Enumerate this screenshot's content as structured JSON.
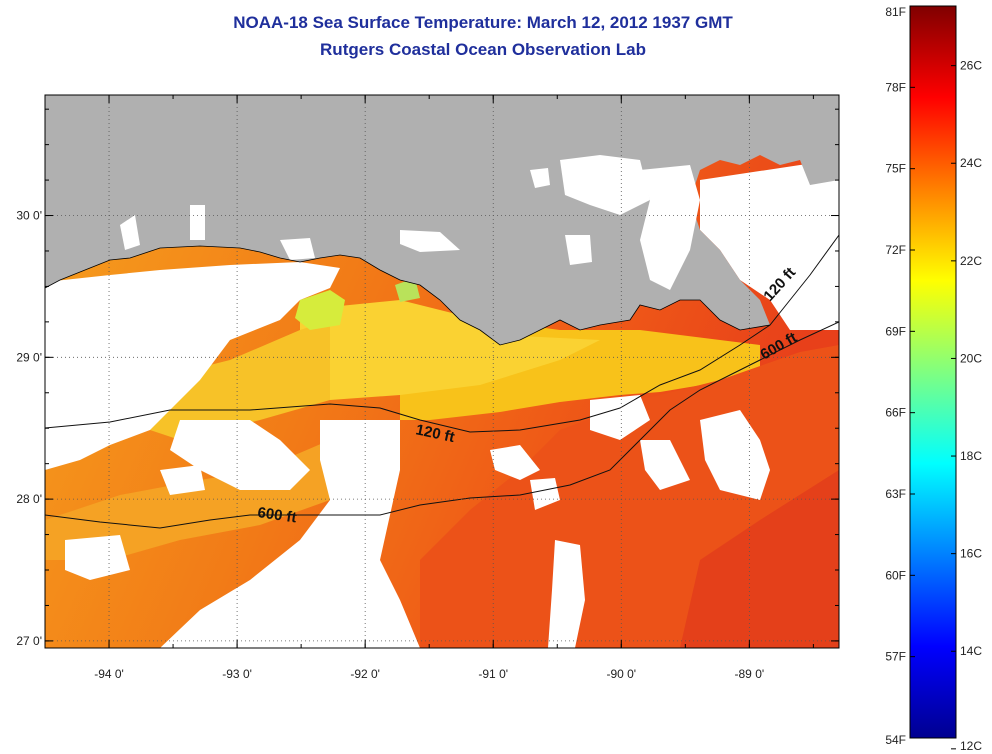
{
  "title": {
    "line1": "NOAA-18 Sea Surface Temperature:  March 12, 2012 1937 GMT",
    "line2": "Rutgers Coastal Ocean Observation Lab"
  },
  "map": {
    "lon_range": [
      -94.5,
      -88.3
    ],
    "lat_range": [
      26.95,
      30.85
    ],
    "x_ticks": [
      {
        "lon": -94,
        "label": "-94 0'"
      },
      {
        "lon": -93,
        "label": "-93 0'"
      },
      {
        "lon": -92,
        "label": "-92 0'"
      },
      {
        "lon": -91,
        "label": "-91 0'"
      },
      {
        "lon": -90,
        "label": "-90 0'"
      },
      {
        "lon": -89,
        "label": "-89 0'"
      }
    ],
    "y_ticks": [
      {
        "lat": 30,
        "label": "30 0'"
      },
      {
        "lat": 29,
        "label": "29 0'"
      },
      {
        "lat": 28,
        "label": "28 0'"
      },
      {
        "lat": 27,
        "label": "27 0'"
      }
    ],
    "grid": "dotted",
    "land_color": "#b0b0b0",
    "cloud_color": "#ffffff",
    "contours": [
      {
        "label": "120 ft"
      },
      {
        "label": "600 ft"
      },
      {
        "label": "120 ft"
      },
      {
        "label": "600 ft"
      }
    ]
  },
  "colorbar": {
    "fahrenheit": [
      {
        "value": 81,
        "label": "81F"
      },
      {
        "value": 78,
        "label": "78F"
      },
      {
        "value": 75,
        "label": "75F"
      },
      {
        "value": 72,
        "label": "72F"
      },
      {
        "value": 69,
        "label": "69F"
      },
      {
        "value": 66,
        "label": "66F"
      },
      {
        "value": 63,
        "label": "63F"
      },
      {
        "value": 60,
        "label": "60F"
      },
      {
        "value": 57,
        "label": "57F"
      },
      {
        "value": 54,
        "label": "54F"
      }
    ],
    "celsius": [
      {
        "value": 26,
        "label": "26C"
      },
      {
        "value": 24,
        "label": "24C"
      },
      {
        "value": 22,
        "label": "22C"
      },
      {
        "value": 20,
        "label": "20C"
      },
      {
        "value": 18,
        "label": "18C"
      },
      {
        "value": 16,
        "label": "16C"
      },
      {
        "value": 14,
        "label": "14C"
      },
      {
        "value": 12,
        "label": "12C"
      }
    ],
    "colors": [
      "#000090",
      "#0000ff",
      "#0080ff",
      "#00ffff",
      "#80ff80",
      "#ffff00",
      "#ff8000",
      "#ff0000",
      "#800000"
    ]
  }
}
